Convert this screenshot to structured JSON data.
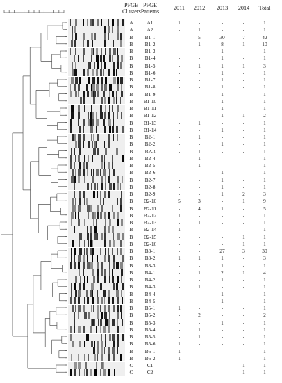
{
  "headers": {
    "clusters": [
      "PFGE",
      "Clusters"
    ],
    "patterns": [
      "PFGE",
      "Patterns"
    ],
    "years": [
      "2011",
      "2012",
      "2013",
      "2014"
    ],
    "total": "Total"
  },
  "rows": [
    {
      "cluster": "A",
      "pattern": "A1",
      "y2011": "1",
      "y2012": "-",
      "y2013": "-",
      "y2014": "-",
      "total": "1"
    },
    {
      "cluster": "A",
      "pattern": "A2",
      "y2011": "-",
      "y2012": "1",
      "y2013": "-",
      "y2014": "-",
      "total": "1"
    },
    {
      "cluster": "B",
      "pattern": "B1-1",
      "y2011": "-",
      "y2012": "5",
      "y2013": "30",
      "y2014": "7",
      "total": "42"
    },
    {
      "cluster": "B",
      "pattern": "B1-2",
      "y2011": "-",
      "y2012": "1",
      "y2013": "8",
      "y2014": "1",
      "total": "10"
    },
    {
      "cluster": "B",
      "pattern": "B1-3",
      "y2011": "-",
      "y2012": "-",
      "y2013": "1",
      "y2014": "-",
      "total": "1"
    },
    {
      "cluster": "B",
      "pattern": "B1-4",
      "y2011": "-",
      "y2012": "-",
      "y2013": "1",
      "y2014": "-",
      "total": "1"
    },
    {
      "cluster": "B",
      "pattern": "B1-5",
      "y2011": "-",
      "y2012": "1",
      "y2013": "1",
      "y2014": "1",
      "total": "3"
    },
    {
      "cluster": "B",
      "pattern": "B1-6",
      "y2011": "-",
      "y2012": "-",
      "y2013": "1",
      "y2014": "-",
      "total": "1"
    },
    {
      "cluster": "B",
      "pattern": "B1-7",
      "y2011": "-",
      "y2012": "-",
      "y2013": "1",
      "y2014": "-",
      "total": "1"
    },
    {
      "cluster": "B",
      "pattern": "B1-8",
      "y2011": "-",
      "y2012": "-",
      "y2013": "1",
      "y2014": "-",
      "total": "1"
    },
    {
      "cluster": "B",
      "pattern": "B1-9",
      "y2011": "-",
      "y2012": "-",
      "y2013": "1",
      "y2014": "-",
      "total": "1"
    },
    {
      "cluster": "B",
      "pattern": "B1-10",
      "y2011": "-",
      "y2012": "-",
      "y2013": "1",
      "y2014": "-",
      "total": "1"
    },
    {
      "cluster": "B",
      "pattern": "B1-11",
      "y2011": "-",
      "y2012": "-",
      "y2013": "1",
      "y2014": "-",
      "total": "1"
    },
    {
      "cluster": "B",
      "pattern": "B1-12",
      "y2011": "-",
      "y2012": "-",
      "y2013": "1",
      "y2014": "1",
      "total": "2"
    },
    {
      "cluster": "B",
      "pattern": "B1-13",
      "y2011": "-",
      "y2012": "1",
      "y2013": "-",
      "y2014": "-",
      "total": "1"
    },
    {
      "cluster": "B",
      "pattern": "B1-14",
      "y2011": "-",
      "y2012": "-",
      "y2013": "1",
      "y2014": "-",
      "total": "1"
    },
    {
      "cluster": "B",
      "pattern": "B2-1",
      "y2011": "-",
      "y2012": "1",
      "y2013": "-",
      "y2014": "-",
      "total": "1"
    },
    {
      "cluster": "B",
      "pattern": "B2-2",
      "y2011": "-",
      "y2012": "-",
      "y2013": "1",
      "y2014": "-",
      "total": "1"
    },
    {
      "cluster": "B",
      "pattern": "B2-3",
      "y2011": "-",
      "y2012": "1",
      "y2013": "-",
      "y2014": "-",
      "total": "1"
    },
    {
      "cluster": "B",
      "pattern": "B2-4",
      "y2011": "-",
      "y2012": "1",
      "y2013": "-",
      "y2014": "-",
      "total": "1"
    },
    {
      "cluster": "B",
      "pattern": "B2-5",
      "y2011": "-",
      "y2012": "1",
      "y2013": "-",
      "y2014": "-",
      "total": "1"
    },
    {
      "cluster": "B",
      "pattern": "B2-6",
      "y2011": "-",
      "y2012": "-",
      "y2013": "1",
      "y2014": "-",
      "total": "1"
    },
    {
      "cluster": "B",
      "pattern": "B2-7",
      "y2011": "-",
      "y2012": "-",
      "y2013": "1",
      "y2014": "-",
      "total": "1"
    },
    {
      "cluster": "B",
      "pattern": "B2-8",
      "y2011": "-",
      "y2012": "-",
      "y2013": "1",
      "y2014": "-",
      "total": "1"
    },
    {
      "cluster": "B",
      "pattern": "B2-9",
      "y2011": "-",
      "y2012": "-",
      "y2013": "1",
      "y2014": "2",
      "total": "3"
    },
    {
      "cluster": "B",
      "pattern": "B2-10",
      "y2011": "5",
      "y2012": "3",
      "y2013": "-",
      "y2014": "1",
      "total": "9"
    },
    {
      "cluster": "B",
      "pattern": "B2-11",
      "y2011": "-",
      "y2012": "4",
      "y2013": "1",
      "y2014": "-",
      "total": "5"
    },
    {
      "cluster": "B",
      "pattern": "B2-12",
      "y2011": "1",
      "y2012": "-",
      "y2013": "-",
      "y2014": "-",
      "total": "1"
    },
    {
      "cluster": "B",
      "pattern": "B2-13",
      "y2011": "-",
      "y2012": "1",
      "y2013": "-",
      "y2014": "-",
      "total": "1"
    },
    {
      "cluster": "B",
      "pattern": "B2-14",
      "y2011": "1",
      "y2012": "-",
      "y2013": "-",
      "y2014": "-",
      "total": "1"
    },
    {
      "cluster": "B",
      "pattern": "B2-15",
      "y2011": "-",
      "y2012": "-",
      "y2013": "-",
      "y2014": "1",
      "total": "1"
    },
    {
      "cluster": "B",
      "pattern": "B2-16",
      "y2011": "-",
      "y2012": "-",
      "y2013": "-",
      "y2014": "1",
      "total": "1"
    },
    {
      "cluster": "B",
      "pattern": "B3-1",
      "y2011": "-",
      "y2012": "-",
      "y2013": "27",
      "y2014": "3",
      "total": "30"
    },
    {
      "cluster": "B",
      "pattern": "B3-2",
      "y2011": "1",
      "y2012": "1",
      "y2013": "1",
      "y2014": "-",
      "total": "3"
    },
    {
      "cluster": "B",
      "pattern": "B3-3",
      "y2011": "-",
      "y2012": "-",
      "y2013": "1",
      "y2014": "-",
      "total": "1"
    },
    {
      "cluster": "B",
      "pattern": "B4-1",
      "y2011": "-",
      "y2012": "1",
      "y2013": "2",
      "y2014": "1",
      "total": "4"
    },
    {
      "cluster": "B",
      "pattern": "B4-2",
      "y2011": "-",
      "y2012": "-",
      "y2013": "1",
      "y2014": "-",
      "total": "1"
    },
    {
      "cluster": "B",
      "pattern": "B4-3",
      "y2011": "-",
      "y2012": "1",
      "y2013": "-",
      "y2014": "-",
      "total": "1"
    },
    {
      "cluster": "B",
      "pattern": "B4-4",
      "y2011": "-",
      "y2012": "-",
      "y2013": "1",
      "y2014": "-",
      "total": "1"
    },
    {
      "cluster": "B",
      "pattern": "B4-5",
      "y2011": "-",
      "y2012": "-",
      "y2013": "1",
      "y2014": "-",
      "total": "1"
    },
    {
      "cluster": "B",
      "pattern": "B5-1",
      "y2011": "1",
      "y2012": "-",
      "y2013": "-",
      "y2014": "-",
      "total": "1"
    },
    {
      "cluster": "B",
      "pattern": "B5-2",
      "y2011": "-",
      "y2012": "2",
      "y2013": "-",
      "y2014": "-",
      "total": "2"
    },
    {
      "cluster": "B",
      "pattern": "B5-3",
      "y2011": "-",
      "y2012": "-",
      "y2013": "1",
      "y2014": "-",
      "total": "1"
    },
    {
      "cluster": "B",
      "pattern": "B5-4",
      "y2011": "-",
      "y2012": "1",
      "y2013": "-",
      "y2014": "-",
      "total": "1"
    },
    {
      "cluster": "B",
      "pattern": "B5-5",
      "y2011": "-",
      "y2012": "1",
      "y2013": "-",
      "y2014": "-",
      "total": "1"
    },
    {
      "cluster": "B",
      "pattern": "B5-6",
      "y2011": "1",
      "y2012": "-",
      "y2013": "-",
      "y2014": "-",
      "total": "1"
    },
    {
      "cluster": "B",
      "pattern": "B6-1",
      "y2011": "1",
      "y2012": "-",
      "y2013": "-",
      "y2014": "-",
      "total": "1"
    },
    {
      "cluster": "B",
      "pattern": "B6-2",
      "y2011": "1",
      "y2012": "-",
      "y2013": "-",
      "y2014": "-",
      "total": "1"
    },
    {
      "cluster": "C",
      "pattern": "C1",
      "y2011": "-",
      "y2012": "-",
      "y2013": "-",
      "y2014": "1",
      "total": "1"
    },
    {
      "cluster": "C",
      "pattern": "C2",
      "y2011": "-",
      "y2012": "-",
      "y2013": "-",
      "y2014": "1",
      "total": "1"
    }
  ]
}
